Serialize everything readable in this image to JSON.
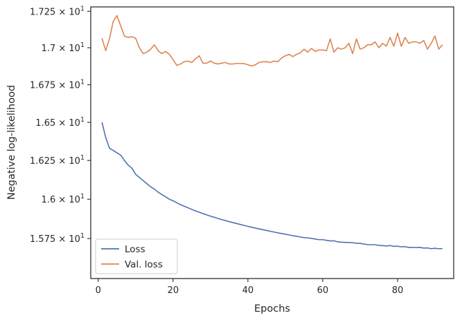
{
  "chart_data": {
    "type": "line",
    "xlabel": "Epochs",
    "ylabel": "Negative log-likelihood",
    "xlim": [
      -2,
      95
    ],
    "ylim": [
      15.5,
      17.28
    ],
    "y_scale": "log",
    "grid": false,
    "legend_placement": "bottom-left",
    "x_ticks": [
      0,
      20,
      40,
      60,
      80
    ],
    "x_tick_labels": [
      "0",
      "20",
      "40",
      "60",
      "80"
    ],
    "y_ticks": [
      15.75,
      16.0,
      16.25,
      16.5,
      16.75,
      17.0,
      17.25
    ],
    "y_tick_labels": [
      {
        "mantissa": "1.575",
        "exp": "1"
      },
      {
        "mantissa": "1.6",
        "exp": "1"
      },
      {
        "mantissa": "1.625",
        "exp": "1"
      },
      {
        "mantissa": "1.65",
        "exp": "1"
      },
      {
        "mantissa": "1.675",
        "exp": "1"
      },
      {
        "mantissa": "1.7",
        "exp": "1"
      },
      {
        "mantissa": "1.725",
        "exp": "1"
      }
    ],
    "x_times_sign": "×",
    "y_tick_base": "10",
    "series": [
      {
        "name": "Loss",
        "color": "#4c72b0",
        "x": [
          1,
          2,
          3,
          4,
          5,
          6,
          7,
          8,
          9,
          10,
          11,
          12,
          13,
          14,
          15,
          16,
          17,
          18,
          19,
          20,
          21,
          22,
          23,
          24,
          25,
          26,
          27,
          28,
          29,
          30,
          31,
          32,
          33,
          34,
          35,
          36,
          37,
          38,
          39,
          40,
          41,
          42,
          43,
          44,
          45,
          46,
          47,
          48,
          49,
          50,
          51,
          52,
          53,
          54,
          55,
          56,
          57,
          58,
          59,
          60,
          61,
          62,
          63,
          64,
          65,
          66,
          67,
          68,
          69,
          70,
          71,
          72,
          73,
          74,
          75,
          76,
          77,
          78,
          79,
          80,
          81,
          82,
          83,
          84,
          85,
          86,
          87,
          88,
          89,
          90,
          91,
          92
        ],
        "y": [
          16.5,
          16.4,
          16.33,
          16.315,
          16.3,
          16.285,
          16.25,
          16.22,
          16.2,
          16.16,
          16.14,
          16.12,
          16.1,
          16.08,
          16.065,
          16.045,
          16.03,
          16.015,
          16.0,
          15.99,
          15.977,
          15.965,
          15.955,
          15.945,
          15.935,
          15.925,
          15.917,
          15.908,
          15.9,
          15.892,
          15.885,
          15.877,
          15.87,
          15.864,
          15.857,
          15.851,
          15.845,
          15.839,
          15.833,
          15.827,
          15.822,
          15.816,
          15.811,
          15.806,
          15.801,
          15.796,
          15.791,
          15.786,
          15.782,
          15.777,
          15.773,
          15.768,
          15.764,
          15.76,
          15.756,
          15.754,
          15.751,
          15.747,
          15.743,
          15.743,
          15.739,
          15.735,
          15.736,
          15.729,
          15.727,
          15.726,
          15.725,
          15.724,
          15.72,
          15.72,
          15.715,
          15.712,
          15.711,
          15.711,
          15.707,
          15.706,
          15.703,
          15.706,
          15.701,
          15.702,
          15.698,
          15.699,
          15.694,
          15.694,
          15.693,
          15.694,
          15.69,
          15.691,
          15.686,
          15.689,
          15.686,
          15.687
        ]
      },
      {
        "name": "Val. loss",
        "color": "#dd8452",
        "x": [
          1,
          2,
          3,
          4,
          5,
          6,
          7,
          8,
          9,
          10,
          11,
          12,
          13,
          14,
          15,
          16,
          17,
          18,
          19,
          20,
          21,
          22,
          23,
          24,
          25,
          26,
          27,
          28,
          29,
          30,
          31,
          32,
          33,
          34,
          35,
          36,
          37,
          38,
          39,
          40,
          41,
          42,
          43,
          44,
          45,
          46,
          47,
          48,
          49,
          50,
          51,
          52,
          53,
          54,
          55,
          56,
          57,
          58,
          59,
          60,
          61,
          62,
          63,
          64,
          65,
          66,
          67,
          68,
          69,
          70,
          71,
          72,
          73,
          74,
          75,
          76,
          77,
          78,
          79,
          80,
          81,
          82,
          83,
          84,
          85,
          86,
          87,
          88,
          89,
          90,
          91,
          92
        ],
        "y": [
          17.065,
          16.98,
          17.06,
          17.18,
          17.22,
          17.15,
          17.08,
          17.07,
          17.075,
          17.065,
          17.0,
          16.96,
          16.97,
          16.99,
          17.02,
          16.98,
          16.96,
          16.975,
          16.955,
          16.92,
          16.88,
          16.89,
          16.905,
          16.91,
          16.9,
          16.925,
          16.945,
          16.895,
          16.895,
          16.91,
          16.895,
          16.89,
          16.895,
          16.9,
          16.89,
          16.89,
          16.893,
          16.893,
          16.892,
          16.885,
          16.876,
          16.885,
          16.9,
          16.905,
          16.905,
          16.9,
          16.91,
          16.905,
          16.93,
          16.945,
          16.955,
          16.94,
          16.955,
          16.965,
          16.99,
          16.97,
          16.995,
          16.975,
          16.985,
          16.985,
          16.98,
          17.06,
          16.97,
          17.0,
          16.99,
          17.0,
          17.03,
          16.96,
          17.06,
          16.99,
          17.0,
          17.02,
          17.02,
          17.04,
          17.0,
          17.03,
          17.01,
          17.07,
          17.01,
          17.1,
          17.01,
          17.07,
          17.03,
          17.04,
          17.04,
          17.03,
          17.05,
          16.99,
          17.03,
          17.08,
          16.99,
          17.02
        ]
      }
    ]
  }
}
